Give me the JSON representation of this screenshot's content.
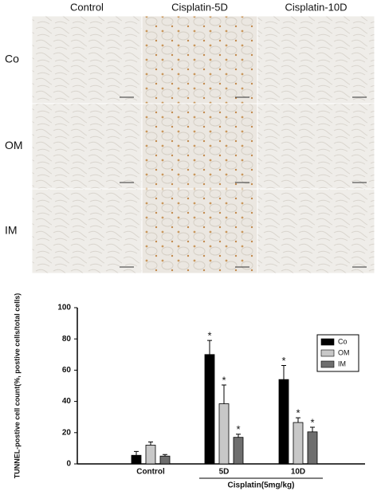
{
  "figure": {
    "columns": [
      "Control",
      "Cisplatin-5D",
      "Cisplatin-10D"
    ],
    "rows": [
      "Co",
      "OM",
      "IM"
    ]
  },
  "chart_data": {
    "type": "bar",
    "ylabel": "TUNNEL-postive cell count(%, postive cells/total cells)",
    "categories": [
      "Control",
      "5D",
      "10D"
    ],
    "group_label": "Cisplatin(5mg/kg)",
    "series": [
      {
        "name": "Co",
        "color": "#000000",
        "values": [
          5.5,
          70,
          54
        ],
        "errors": [
          2.5,
          9,
          9
        ],
        "markers": [
          null,
          "*",
          "*"
        ]
      },
      {
        "name": "OM",
        "color": "#c8c8c8",
        "values": [
          12,
          38.5,
          26.5
        ],
        "errors": [
          2,
          12,
          3
        ],
        "markers": [
          null,
          "*",
          "*"
        ]
      },
      {
        "name": "IM",
        "color": "#6e6e6e",
        "values": [
          5,
          17,
          20.5
        ],
        "errors": [
          1,
          2,
          3
        ],
        "markers": [
          null,
          "*",
          "*"
        ]
      }
    ],
    "ylim": [
      0,
      100
    ],
    "yticks": [
      0,
      20,
      40,
      60,
      80,
      100
    ],
    "legend": "right"
  }
}
